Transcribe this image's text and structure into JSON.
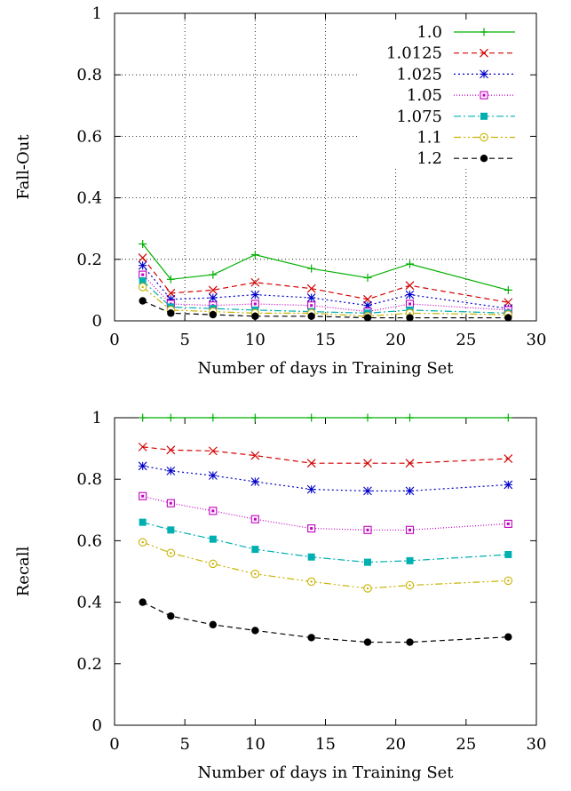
{
  "chart_data": [
    {
      "type": "line",
      "xlabel": "Number of days in Training Set",
      "ylabel": "Fall-Out",
      "xlim": [
        0,
        30
      ],
      "ylim": [
        0,
        1
      ],
      "xticks": [
        0,
        5,
        10,
        15,
        20,
        25,
        30
      ],
      "yticks": [
        0,
        0.2,
        0.4,
        0.6,
        0.8,
        1
      ],
      "xtick_labels": [
        "0",
        "5",
        "10",
        "15",
        "20",
        "25",
        "30"
      ],
      "ytick_labels": [
        "0",
        "0.2",
        "0.4",
        "0.6",
        "0.8",
        "1"
      ],
      "grid": "dotted",
      "legend": "top-right",
      "x": [
        2,
        4,
        7,
        10,
        14,
        18,
        21,
        28
      ],
      "series": [
        {
          "name": "1.0",
          "color": "#00b000",
          "dash": "solid",
          "marker": "plus",
          "values": [
            0.25,
            0.135,
            0.15,
            0.215,
            0.17,
            0.14,
            0.185,
            0.1
          ]
        },
        {
          "name": "1.0125",
          "color": "#d40000",
          "dash": "dashed",
          "marker": "cross",
          "values": [
            0.205,
            0.09,
            0.1,
            0.125,
            0.105,
            0.07,
            0.115,
            0.06
          ]
        },
        {
          "name": "1.025",
          "color": "#0000c8",
          "dash": "dotted",
          "marker": "star",
          "values": [
            0.18,
            0.07,
            0.075,
            0.085,
            0.075,
            0.05,
            0.085,
            0.04
          ]
        },
        {
          "name": "1.05",
          "color": "#c000c0",
          "dash": "fine",
          "marker": "square-open",
          "values": [
            0.15,
            0.055,
            0.05,
            0.055,
            0.05,
            0.03,
            0.055,
            0.035
          ]
        },
        {
          "name": "1.075",
          "color": "#00b0b0",
          "dash": "dashdot",
          "marker": "square-filled",
          "values": [
            0.13,
            0.045,
            0.04,
            0.035,
            0.03,
            0.025,
            0.035,
            0.025
          ]
        },
        {
          "name": "1.1",
          "color": "#c8b400",
          "dash": "dashdotdot",
          "marker": "circle-open",
          "values": [
            0.11,
            0.035,
            0.03,
            0.025,
            0.025,
            0.015,
            0.025,
            0.02
          ]
        },
        {
          "name": "1.2",
          "color": "#000000",
          "dash": "dashed",
          "marker": "circle-filled",
          "values": [
            0.065,
            0.025,
            0.02,
            0.015,
            0.015,
            0.01,
            0.01,
            0.01
          ]
        }
      ]
    },
    {
      "type": "line",
      "xlabel": "Number of days in Training Set",
      "ylabel": "Recall",
      "xlim": [
        0,
        30
      ],
      "ylim": [
        0,
        1
      ],
      "xticks": [
        0,
        5,
        10,
        15,
        20,
        25,
        30
      ],
      "yticks": [
        0,
        0.2,
        0.4,
        0.6,
        0.8,
        1
      ],
      "xtick_labels": [
        "0",
        "5",
        "10",
        "15",
        "20",
        "25",
        "30"
      ],
      "ytick_labels": [
        "0",
        "0.2",
        "0.4",
        "0.6",
        "0.8",
        "1"
      ],
      "grid": "none",
      "legend": "none",
      "x": [
        2,
        4,
        7,
        10,
        14,
        18,
        21,
        28
      ],
      "series": [
        {
          "color": "#00b000",
          "dash": "solid",
          "marker": "plus",
          "values": [
            1.0,
            1.0,
            1.0,
            1.0,
            1.0,
            1.0,
            1.0,
            1.0
          ]
        },
        {
          "color": "#d40000",
          "dash": "dashed",
          "marker": "cross",
          "values": [
            0.905,
            0.895,
            0.892,
            0.877,
            0.852,
            0.852,
            0.852,
            0.867
          ]
        },
        {
          "color": "#0000c8",
          "dash": "dotted",
          "marker": "star",
          "values": [
            0.843,
            0.827,
            0.812,
            0.792,
            0.767,
            0.762,
            0.762,
            0.782
          ]
        },
        {
          "color": "#c000c0",
          "dash": "fine",
          "marker": "square-open",
          "values": [
            0.745,
            0.722,
            0.697,
            0.67,
            0.64,
            0.635,
            0.635,
            0.655
          ]
        },
        {
          "color": "#00b0b0",
          "dash": "dashdot",
          "marker": "square-filled",
          "values": [
            0.66,
            0.635,
            0.605,
            0.572,
            0.547,
            0.53,
            0.535,
            0.555
          ]
        },
        {
          "color": "#c8b400",
          "dash": "dashdotdot",
          "marker": "circle-open",
          "values": [
            0.595,
            0.56,
            0.525,
            0.492,
            0.467,
            0.445,
            0.455,
            0.47
          ]
        },
        {
          "color": "#000000",
          "dash": "dashed",
          "marker": "circle-filled",
          "values": [
            0.4,
            0.355,
            0.327,
            0.308,
            0.285,
            0.27,
            0.27,
            0.287
          ]
        }
      ]
    }
  ]
}
